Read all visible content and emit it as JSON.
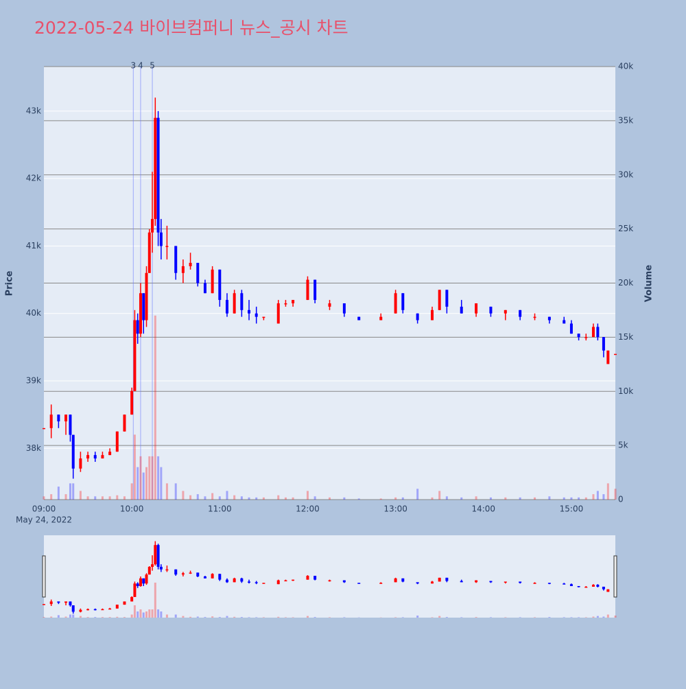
{
  "chart_data": {
    "type": "candlestick",
    "title": "2022-05-24 바이브컴퍼니 뉴스_공시 차트",
    "x": [
      "09:00",
      "09:05",
      "09:10",
      "09:15",
      "09:18",
      "09:20",
      "09:25",
      "09:30",
      "09:35",
      "09:40",
      "09:45",
      "09:50",
      "09:55",
      "10:00",
      "10:02",
      "10:04",
      "10:06",
      "10:08",
      "10:10",
      "10:12",
      "10:14",
      "10:16",
      "10:18",
      "10:20",
      "10:24",
      "10:30",
      "10:35",
      "10:40",
      "10:45",
      "10:50",
      "10:55",
      "11:00",
      "11:05",
      "11:10",
      "11:15",
      "11:20",
      "11:25",
      "11:30",
      "11:40",
      "11:45",
      "11:50",
      "12:00",
      "12:05",
      "12:15",
      "12:25",
      "12:35",
      "12:50",
      "13:00",
      "13:05",
      "13:15",
      "13:25",
      "13:30",
      "13:35",
      "13:45",
      "13:55",
      "14:05",
      "14:15",
      "14:25",
      "14:35",
      "14:45",
      "14:55",
      "15:00",
      "15:05",
      "15:10",
      "15:15",
      "15:18",
      "15:22",
      "15:25",
      "15:30"
    ],
    "open": [
      38300,
      38300,
      38500,
      38400,
      38500,
      38200,
      37700,
      37850,
      37900,
      37850,
      37900,
      37950,
      38250,
      38500,
      38850,
      39900,
      39700,
      40300,
      39900,
      40600,
      41200,
      41400,
      42900,
      41200,
      41000,
      41000,
      40600,
      40700,
      40750,
      40450,
      40300,
      40650,
      40200,
      40000,
      40300,
      40050,
      40000,
      39950,
      39850,
      40150,
      40150,
      40200,
      40500,
      40100,
      40150,
      39950,
      39900,
      40000,
      40300,
      40000,
      39900,
      40050,
      40350,
      40100,
      40000,
      40100,
      40000,
      40050,
      39950,
      39950,
      39900,
      39850,
      39700,
      39650,
      39650,
      39800,
      39650,
      39250,
      39400
    ],
    "high": [
      38300,
      38650,
      38500,
      38500,
      38500,
      38200,
      37950,
      37950,
      37950,
      37950,
      38000,
      38250,
      38500,
      38900,
      40050,
      40000,
      40450,
      40300,
      40700,
      41250,
      42100,
      43200,
      43000,
      41400,
      41300,
      41000,
      40800,
      40900,
      40750,
      40500,
      40700,
      40650,
      40300,
      40350,
      40350,
      40200,
      40100,
      39950,
      40200,
      40200,
      40200,
      40550,
      40500,
      40200,
      40150,
      39950,
      40000,
      40350,
      40300,
      40000,
      40100,
      40350,
      40350,
      40200,
      40150,
      40100,
      40050,
      40050,
      40000,
      39950,
      39950,
      39900,
      39700,
      39700,
      39850,
      39850,
      39650,
      39450,
      39400
    ],
    "low": [
      38300,
      38150,
      38300,
      38200,
      38100,
      37550,
      37650,
      37800,
      37800,
      37850,
      37900,
      37950,
      38250,
      38500,
      38850,
      39550,
      39650,
      39700,
      39800,
      40600,
      40900,
      41300,
      41000,
      40800,
      40800,
      40500,
      40450,
      40650,
      40400,
      40300,
      40300,
      40100,
      39950,
      40000,
      39950,
      39900,
      39850,
      39900,
      39850,
      40100,
      40100,
      40200,
      40150,
      40050,
      39950,
      39900,
      39900,
      40000,
      40000,
      39850,
      39900,
      40050,
      40000,
      40000,
      39950,
      39950,
      39900,
      39900,
      39900,
      39850,
      39850,
      39700,
      39600,
      39600,
      39650,
      39600,
      39350,
      39250,
      39400
    ],
    "close": [
      38300,
      38500,
      38400,
      38500,
      38200,
      37700,
      37850,
      37900,
      37850,
      37900,
      37950,
      38250,
      38500,
      38850,
      39900,
      39700,
      40300,
      39900,
      40600,
      41200,
      41400,
      42900,
      41200,
      41000,
      41000,
      40600,
      40700,
      40750,
      40450,
      40300,
      40650,
      40200,
      40000,
      40300,
      40050,
      40000,
      39950,
      39950,
      40150,
      40150,
      40200,
      40500,
      40200,
      40150,
      40000,
      39900,
      39950,
      40300,
      40050,
      39900,
      40050,
      40350,
      40100,
      40000,
      40150,
      40000,
      40050,
      39950,
      39950,
      39900,
      39850,
      39700,
      39650,
      39650,
      39800,
      39650,
      39450,
      39450,
      39400
    ],
    "volume": [
      300,
      500,
      1200,
      500,
      1500,
      1500,
      800,
      300,
      300,
      300,
      300,
      400,
      300,
      1500,
      6000,
      3000,
      4000,
      2500,
      3000,
      4000,
      4000,
      17000,
      4000,
      3000,
      1500,
      1500,
      800,
      400,
      500,
      300,
      600,
      300,
      800,
      400,
      300,
      200,
      200,
      200,
      400,
      200,
      200,
      800,
      300,
      200,
      200,
      100,
      100,
      200,
      200,
      1000,
      200,
      800,
      300,
      200,
      300,
      200,
      200,
      200,
      200,
      300,
      200,
      200,
      200,
      200,
      500,
      800,
      500,
      1500,
      1000
    ],
    "increasing_color": "#ff0000",
    "decreasing_color": "#0000ff",
    "xlim": [
      "09:00",
      "15:30"
    ],
    "xticks": [
      "09:00",
      "10:00",
      "11:00",
      "12:00",
      "13:00",
      "14:00",
      "15:00"
    ],
    "x_date_label": "May 24, 2022",
    "y_label": "Price",
    "ylim": [
      37240,
      43660
    ],
    "yticks": [
      {
        "value": 38000,
        "label": "38k"
      },
      {
        "value": 39000,
        "label": "39k"
      },
      {
        "value": 40000,
        "label": "40k"
      },
      {
        "value": 41000,
        "label": "41k"
      },
      {
        "value": 42000,
        "label": "42k"
      },
      {
        "value": 43000,
        "label": "43k"
      }
    ],
    "y2_label": "Volume",
    "y2lim": [
      0,
      40000
    ],
    "y2ticks": [
      0,
      {
        "value": 5000,
        "label": "5k"
      },
      {
        "value": 10000,
        "label": "10k"
      },
      {
        "value": 15000,
        "label": "15k"
      },
      {
        "value": 20000,
        "label": "20k"
      },
      {
        "value": 25000,
        "label": "25k"
      },
      {
        "value": 30000,
        "label": "30k"
      },
      {
        "value": 35000,
        "label": "35k"
      },
      {
        "value": 40000,
        "label": "40k"
      }
    ],
    "annotations": [
      {
        "x": "10:01",
        "label": "3"
      },
      {
        "x": "10:06",
        "label": "4"
      },
      {
        "x": "10:14",
        "label": "5"
      }
    ],
    "rangeslider": true
  }
}
